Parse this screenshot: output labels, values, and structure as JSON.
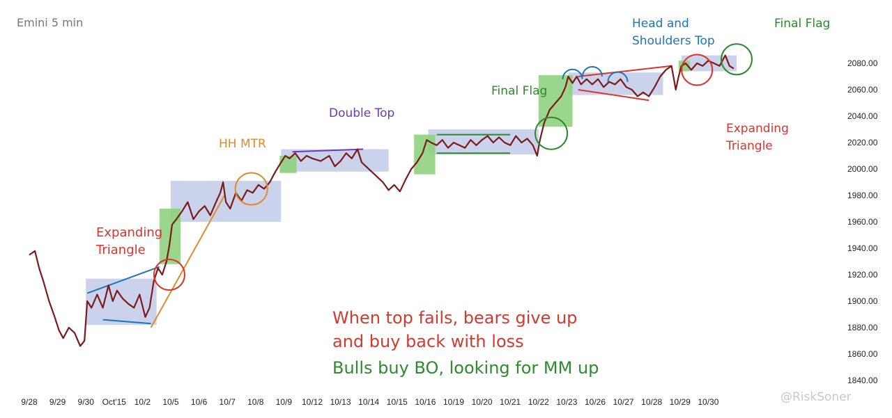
{
  "chart_data": {
    "type": "line",
    "title": "Emini 5 min",
    "y_ticks": [
      "1840.00",
      "1860.00",
      "1880.00",
      "1900.00",
      "1920.00",
      "1940.00",
      "1960.00",
      "1980.00",
      "2000.00",
      "2020.00",
      "2040.00",
      "2060.00",
      "2080.00"
    ],
    "ylim": [
      1840,
      2090
    ],
    "x_ticks": [
      "9/28",
      "9/29",
      "9/30",
      "Oct'15",
      "10/2",
      "10/5",
      "10/6",
      "10/7",
      "10/8",
      "10/9",
      "10/12",
      "10/13",
      "10/14",
      "10/15",
      "10/16",
      "10/19",
      "10/20",
      "10/21",
      "10/22",
      "10/23",
      "10/26",
      "10/27",
      "10/28",
      "10/29",
      "10/30"
    ],
    "series": [
      {
        "values": [
          [
            0.0,
            1935
          ],
          [
            0.2,
            1938
          ],
          [
            0.35,
            1925
          ],
          [
            0.5,
            1915
          ],
          [
            0.7,
            1900
          ],
          [
            0.9,
            1888
          ],
          [
            1.05,
            1878
          ],
          [
            1.2,
            1872
          ],
          [
            1.4,
            1880
          ],
          [
            1.6,
            1876
          ],
          [
            1.8,
            1866
          ],
          [
            1.95,
            1870
          ],
          [
            2.05,
            1900
          ],
          [
            2.2,
            1895
          ],
          [
            2.4,
            1905
          ],
          [
            2.6,
            1895
          ],
          [
            2.8,
            1912
          ],
          [
            2.95,
            1900
          ],
          [
            3.1,
            1908
          ],
          [
            3.3,
            1902
          ],
          [
            3.5,
            1898
          ],
          [
            3.7,
            1895
          ],
          [
            3.9,
            1905
          ],
          [
            4.1,
            1888
          ],
          [
            4.25,
            1895
          ],
          [
            4.4,
            1915
          ],
          [
            4.55,
            1925
          ],
          [
            4.7,
            1920
          ],
          [
            4.85,
            1930
          ],
          [
            4.95,
            1942
          ],
          [
            5.05,
            1958
          ],
          [
            5.2,
            1962
          ],
          [
            5.4,
            1968
          ],
          [
            5.6,
            1975
          ],
          [
            5.8,
            1962
          ],
          [
            6.0,
            1968
          ],
          [
            6.2,
            1972
          ],
          [
            6.4,
            1965
          ],
          [
            6.6,
            1975
          ],
          [
            6.75,
            1982
          ],
          [
            6.85,
            1990
          ],
          [
            6.95,
            1975
          ],
          [
            7.1,
            1970
          ],
          [
            7.3,
            1982
          ],
          [
            7.5,
            1976
          ],
          [
            7.7,
            1984
          ],
          [
            7.9,
            1982
          ],
          [
            8.1,
            1988
          ],
          [
            8.3,
            1985
          ],
          [
            8.5,
            1990
          ],
          [
            8.7,
            1998
          ],
          [
            8.9,
            2005
          ],
          [
            9.05,
            2010
          ],
          [
            9.2,
            2008
          ],
          [
            9.4,
            2012
          ],
          [
            9.6,
            2006
          ],
          [
            9.8,
            2010
          ],
          [
            10.0,
            2008
          ],
          [
            10.3,
            2006
          ],
          [
            10.6,
            2010
          ],
          [
            10.8,
            2002
          ],
          [
            11.0,
            2006
          ],
          [
            11.2,
            2012
          ],
          [
            11.4,
            2008
          ],
          [
            11.6,
            2015
          ],
          [
            11.75,
            2005
          ],
          [
            11.9,
            2002
          ],
          [
            12.1,
            1998
          ],
          [
            12.3,
            1994
          ],
          [
            12.5,
            1990
          ],
          [
            12.7,
            1984
          ],
          [
            12.9,
            1988
          ],
          [
            13.1,
            1983
          ],
          [
            13.3,
            1992
          ],
          [
            13.5,
            2000
          ],
          [
            13.7,
            2005
          ],
          [
            13.9,
            2012
          ],
          [
            14.05,
            2022
          ],
          [
            14.2,
            2020
          ],
          [
            14.4,
            2018
          ],
          [
            14.6,
            2022
          ],
          [
            14.8,
            2016
          ],
          [
            15.0,
            2020
          ],
          [
            15.2,
            2018
          ],
          [
            15.4,
            2016
          ],
          [
            15.6,
            2022
          ],
          [
            15.8,
            2018
          ],
          [
            16.0,
            2022
          ],
          [
            16.2,
            2025
          ],
          [
            16.4,
            2020
          ],
          [
            16.6,
            2024
          ],
          [
            16.8,
            2020
          ],
          [
            17.0,
            2018
          ],
          [
            17.2,
            2025
          ],
          [
            17.4,
            2020
          ],
          [
            17.6,
            2023
          ],
          [
            17.8,
            2018
          ],
          [
            17.95,
            2010
          ],
          [
            18.05,
            2022
          ],
          [
            18.2,
            2035
          ],
          [
            18.4,
            2045
          ],
          [
            18.6,
            2050
          ],
          [
            18.8,
            2055
          ],
          [
            18.95,
            2062
          ],
          [
            19.05,
            2070
          ],
          [
            19.2,
            2065
          ],
          [
            19.35,
            2070
          ],
          [
            19.5,
            2064
          ],
          [
            19.7,
            2068
          ],
          [
            19.9,
            2064
          ],
          [
            20.1,
            2068
          ],
          [
            20.3,
            2062
          ],
          [
            20.5,
            2066
          ],
          [
            20.7,
            2064
          ],
          [
            20.9,
            2068
          ],
          [
            21.1,
            2062
          ],
          [
            21.3,
            2060
          ],
          [
            21.5,
            2055
          ],
          [
            21.7,
            2058
          ],
          [
            21.9,
            2055
          ],
          [
            22.1,
            2062
          ],
          [
            22.3,
            2070
          ],
          [
            22.5,
            2075
          ],
          [
            22.7,
            2078
          ],
          [
            22.85,
            2060
          ],
          [
            22.95,
            2070
          ],
          [
            23.05,
            2078
          ],
          [
            23.2,
            2080
          ],
          [
            23.4,
            2075
          ],
          [
            23.6,
            2080
          ],
          [
            23.8,
            2078
          ],
          [
            24.0,
            2082
          ],
          [
            24.2,
            2080
          ],
          [
            24.4,
            2078
          ],
          [
            24.6,
            2086
          ],
          [
            24.75,
            2078
          ],
          [
            24.9,
            2076
          ]
        ]
      }
    ],
    "annotations": {
      "expanding_triangle_left": [
        "Expanding",
        "Triangle"
      ],
      "hh_mtr": "HH MTR",
      "double_top": "Double Top",
      "final_flag_mid": "Final Flag",
      "head_shoulders": [
        "Head and",
        "Shoulders Top"
      ],
      "final_flag_right": "Final Flag",
      "expanding_triangle_right": [
        "Expanding",
        "Triangle"
      ],
      "commentary": [
        "When top fails, bears give up",
        "and buy back with loss",
        "Bulls buy BO, looking for MM up"
      ]
    },
    "colors": {
      "price": "#7a1a1a",
      "range_box": "#b9c4e6",
      "breakout_box": "#8fd27e",
      "red": "#d9342b",
      "blue": "#1f73b7",
      "orange": "#e08a2e",
      "green": "#2a8a2a",
      "purple": "#6a3ab8",
      "title": "#777777",
      "commentary_red": "#d13b2e",
      "commentary_green": "#2f8a2f"
    },
    "watermark": "@RiskSoner"
  }
}
